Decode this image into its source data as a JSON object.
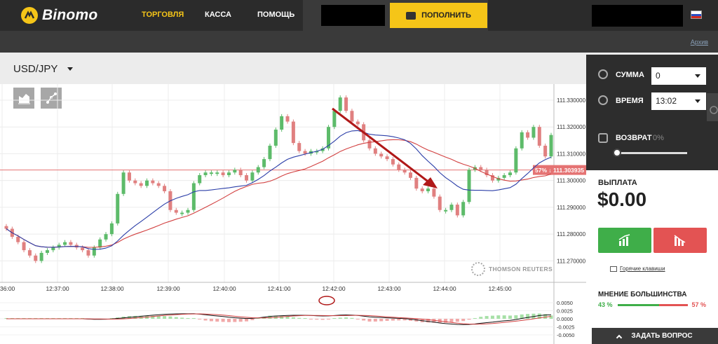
{
  "app": {
    "logo_text": "Binomo"
  },
  "nav": {
    "trading": "ТОРГОВЛЯ",
    "cashier": "КАССА",
    "help": "ПОМОЩЬ"
  },
  "header": {
    "deposit_label": "ПОПОЛНИТЬ",
    "archive_link": "Архив"
  },
  "pair": {
    "label": "USD/JPY"
  },
  "right_panel": {
    "amount_label": "СУММА",
    "amount_value": "0",
    "time_label": "ВРЕМЯ",
    "time_value": "13:02",
    "return_label": "ВОЗВРАТ",
    "return_value": "0%",
    "return_level": 0,
    "payout_label": "ВЫПЛАТА",
    "payout_value": "$0.00",
    "hotkeys_label": "Горячие клавиши",
    "majority_label": "МНЕНИЕ БОЛЬШИНСТВА",
    "majority_up": "43 %",
    "majority_down": "57 %",
    "ask_button": "ЗАДАТЬ ВОПРОС"
  },
  "chart": {
    "watermark": "THOMSON REUTERS",
    "price_badge": "57% ↓ 111.303935",
    "colors": {
      "up": "#5dbb6a",
      "down": "#e08080",
      "ma_blue": "#2b3ea8",
      "ma_red": "#d24040",
      "arrow": "#b01818"
    },
    "y_ticks": [
      "111.330000",
      "111.320000",
      "111.310000",
      "111.300000",
      "111.290000",
      "111.280000",
      "111.270000"
    ],
    "x_ticks": [
      "36:00",
      "12:37:00",
      "12:38:00",
      "12:39:00",
      "12:40:00",
      "12:41:00",
      "12:42:00",
      "12:43:00",
      "12:44:00",
      "12:45:00"
    ],
    "osc_ticks": [
      "0.0050",
      "0.0025",
      "0.0000",
      "-0.0025",
      "-0.0050"
    ]
  },
  "chart_data": {
    "type": "candlestick",
    "price_levels": [
      111.33,
      111.32,
      111.31,
      111.3,
      111.29,
      111.28,
      111.27
    ],
    "current_price": 111.303935,
    "closes": [
      111.282,
      111.279,
      111.277,
      111.274,
      111.272,
      111.27,
      111.273,
      111.274,
      111.275,
      111.276,
      111.277,
      111.276,
      111.275,
      111.274,
      111.272,
      111.275,
      111.278,
      111.28,
      111.284,
      111.295,
      111.303,
      111.3,
      111.299,
      111.298,
      111.3,
      111.299,
      111.298,
      111.296,
      111.289,
      111.288,
      111.288,
      111.289,
      111.299,
      111.302,
      111.303,
      111.303,
      111.303,
      111.302,
      111.303,
      111.304,
      111.302,
      111.3,
      111.303,
      111.305,
      111.308,
      111.313,
      111.319,
      111.324,
      111.322,
      111.314,
      111.311,
      111.31,
      111.311,
      111.311,
      111.312,
      111.32,
      111.326,
      111.331,
      111.326,
      111.322,
      111.321,
      111.315,
      111.312,
      111.31,
      111.309,
      111.308,
      111.306,
      111.304,
      111.303,
      111.301,
      111.297,
      111.296,
      111.297,
      111.294,
      111.289,
      111.289,
      111.291,
      111.287,
      111.292,
      111.304,
      111.305,
      111.304,
      111.302,
      111.3,
      111.301,
      111.302,
      111.303,
      111.312,
      111.318,
      111.316,
      111.32,
      111.313,
      111.309,
      111.317
    ]
  }
}
